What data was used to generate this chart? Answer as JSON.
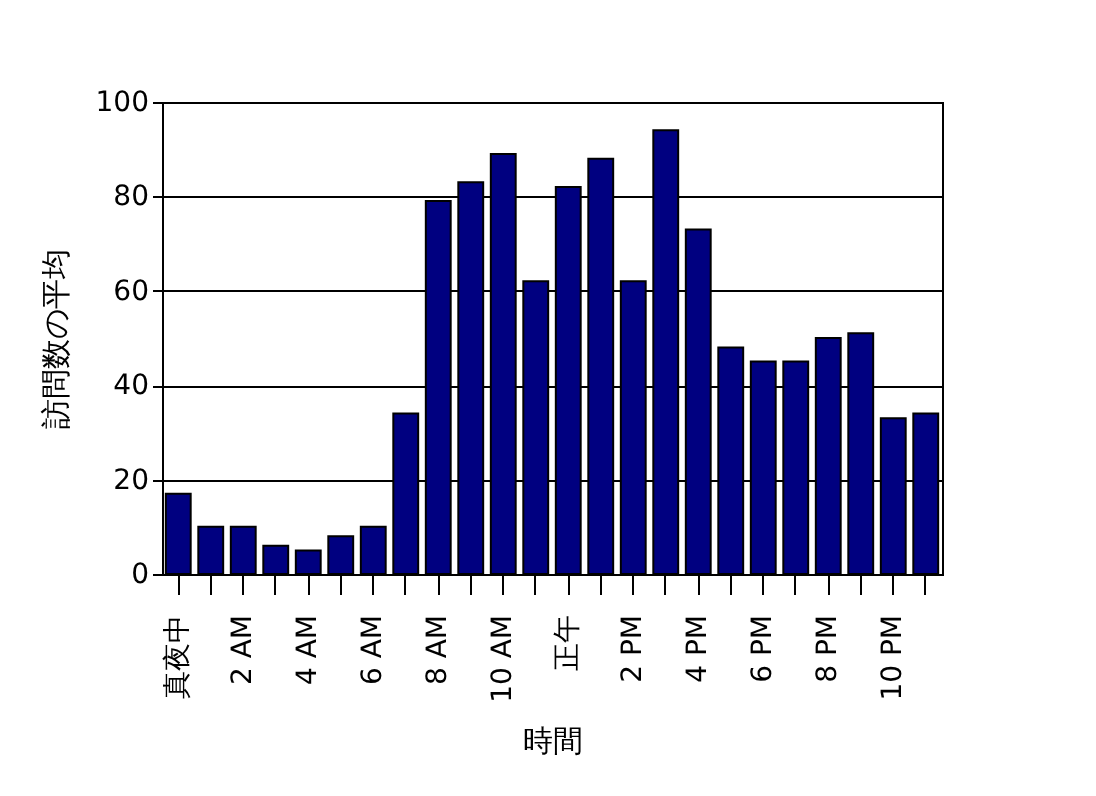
{
  "chart_data": {
    "type": "bar",
    "xlabel": "時間",
    "ylabel": "訪問数の平均",
    "categories": [
      "真夜中",
      null,
      "2 AM",
      null,
      "4 AM",
      null,
      "6 AM",
      null,
      "8 AM",
      null,
      "10 AM",
      null,
      "正午",
      null,
      "2 PM",
      null,
      "4 PM",
      null,
      "6 PM",
      null,
      "8 PM",
      null,
      "10 PM",
      null
    ],
    "values": [
      17,
      10,
      10,
      6,
      5,
      8,
      10,
      34,
      79,
      83,
      89,
      62,
      82,
      88,
      62,
      94,
      73,
      48,
      45,
      45,
      50,
      51,
      33,
      34
    ],
    "color": "#000080",
    "ylim": [
      0,
      100
    ],
    "yticks": [
      0,
      20,
      40,
      60,
      80,
      100
    ],
    "grid": "y"
  }
}
